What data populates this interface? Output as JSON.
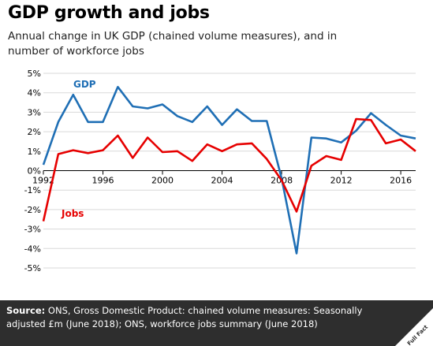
{
  "header": {
    "title": "GDP growth and jobs",
    "subtitle": "Annual change in UK GDP (chained volume measures), and in number of workforce jobs"
  },
  "footer": {
    "source_label": "Source:",
    "source_text": " ONS, Gross Domestic Product: chained volume measures: Seasonally adjusted £m (June 2018); ONS, workforce jobs summary (June 2018)",
    "logo_text": "Full Fact"
  },
  "chart_data": {
    "type": "line",
    "x": [
      1992,
      1993,
      1994,
      1995,
      1996,
      1997,
      1998,
      1999,
      2000,
      2001,
      2002,
      2003,
      2004,
      2005,
      2006,
      2007,
      2008,
      2009,
      2010,
      2011,
      2012,
      2013,
      2014,
      2015,
      2016,
      2017
    ],
    "series": [
      {
        "name": "GDP",
        "color": "#1f6fb5",
        "values": [
          0.3,
          2.5,
          3.9,
          2.5,
          2.5,
          4.3,
          3.3,
          3.2,
          3.4,
          2.8,
          2.5,
          3.3,
          2.35,
          3.15,
          2.55,
          2.55,
          -0.4,
          -4.25,
          1.7,
          1.65,
          1.45,
          2.05,
          2.95,
          2.35,
          1.8,
          1.65
        ]
      },
      {
        "name": "Jobs",
        "color": "#e60000",
        "values": [
          -2.6,
          0.85,
          1.05,
          0.9,
          1.05,
          1.8,
          0.65,
          1.7,
          0.95,
          1.0,
          0.5,
          1.35,
          1.0,
          1.35,
          1.4,
          0.6,
          -0.5,
          -2.1,
          0.25,
          0.75,
          0.55,
          2.65,
          2.6,
          1.4,
          1.6,
          1.0
        ]
      }
    ],
    "x_ticks": [
      "1992",
      "1996",
      "2000",
      "2004",
      "2008",
      "2012",
      "2016"
    ],
    "y_ticks": [
      "5%",
      "4%",
      "3%",
      "2%",
      "1%",
      "0%",
      "-1%",
      "-2%",
      "-3%",
      "-4%",
      "-5%"
    ],
    "ylim": [
      -5,
      5
    ],
    "xlim": [
      1992,
      2017
    ],
    "grid": "horizontal",
    "legend": "inline labels"
  }
}
